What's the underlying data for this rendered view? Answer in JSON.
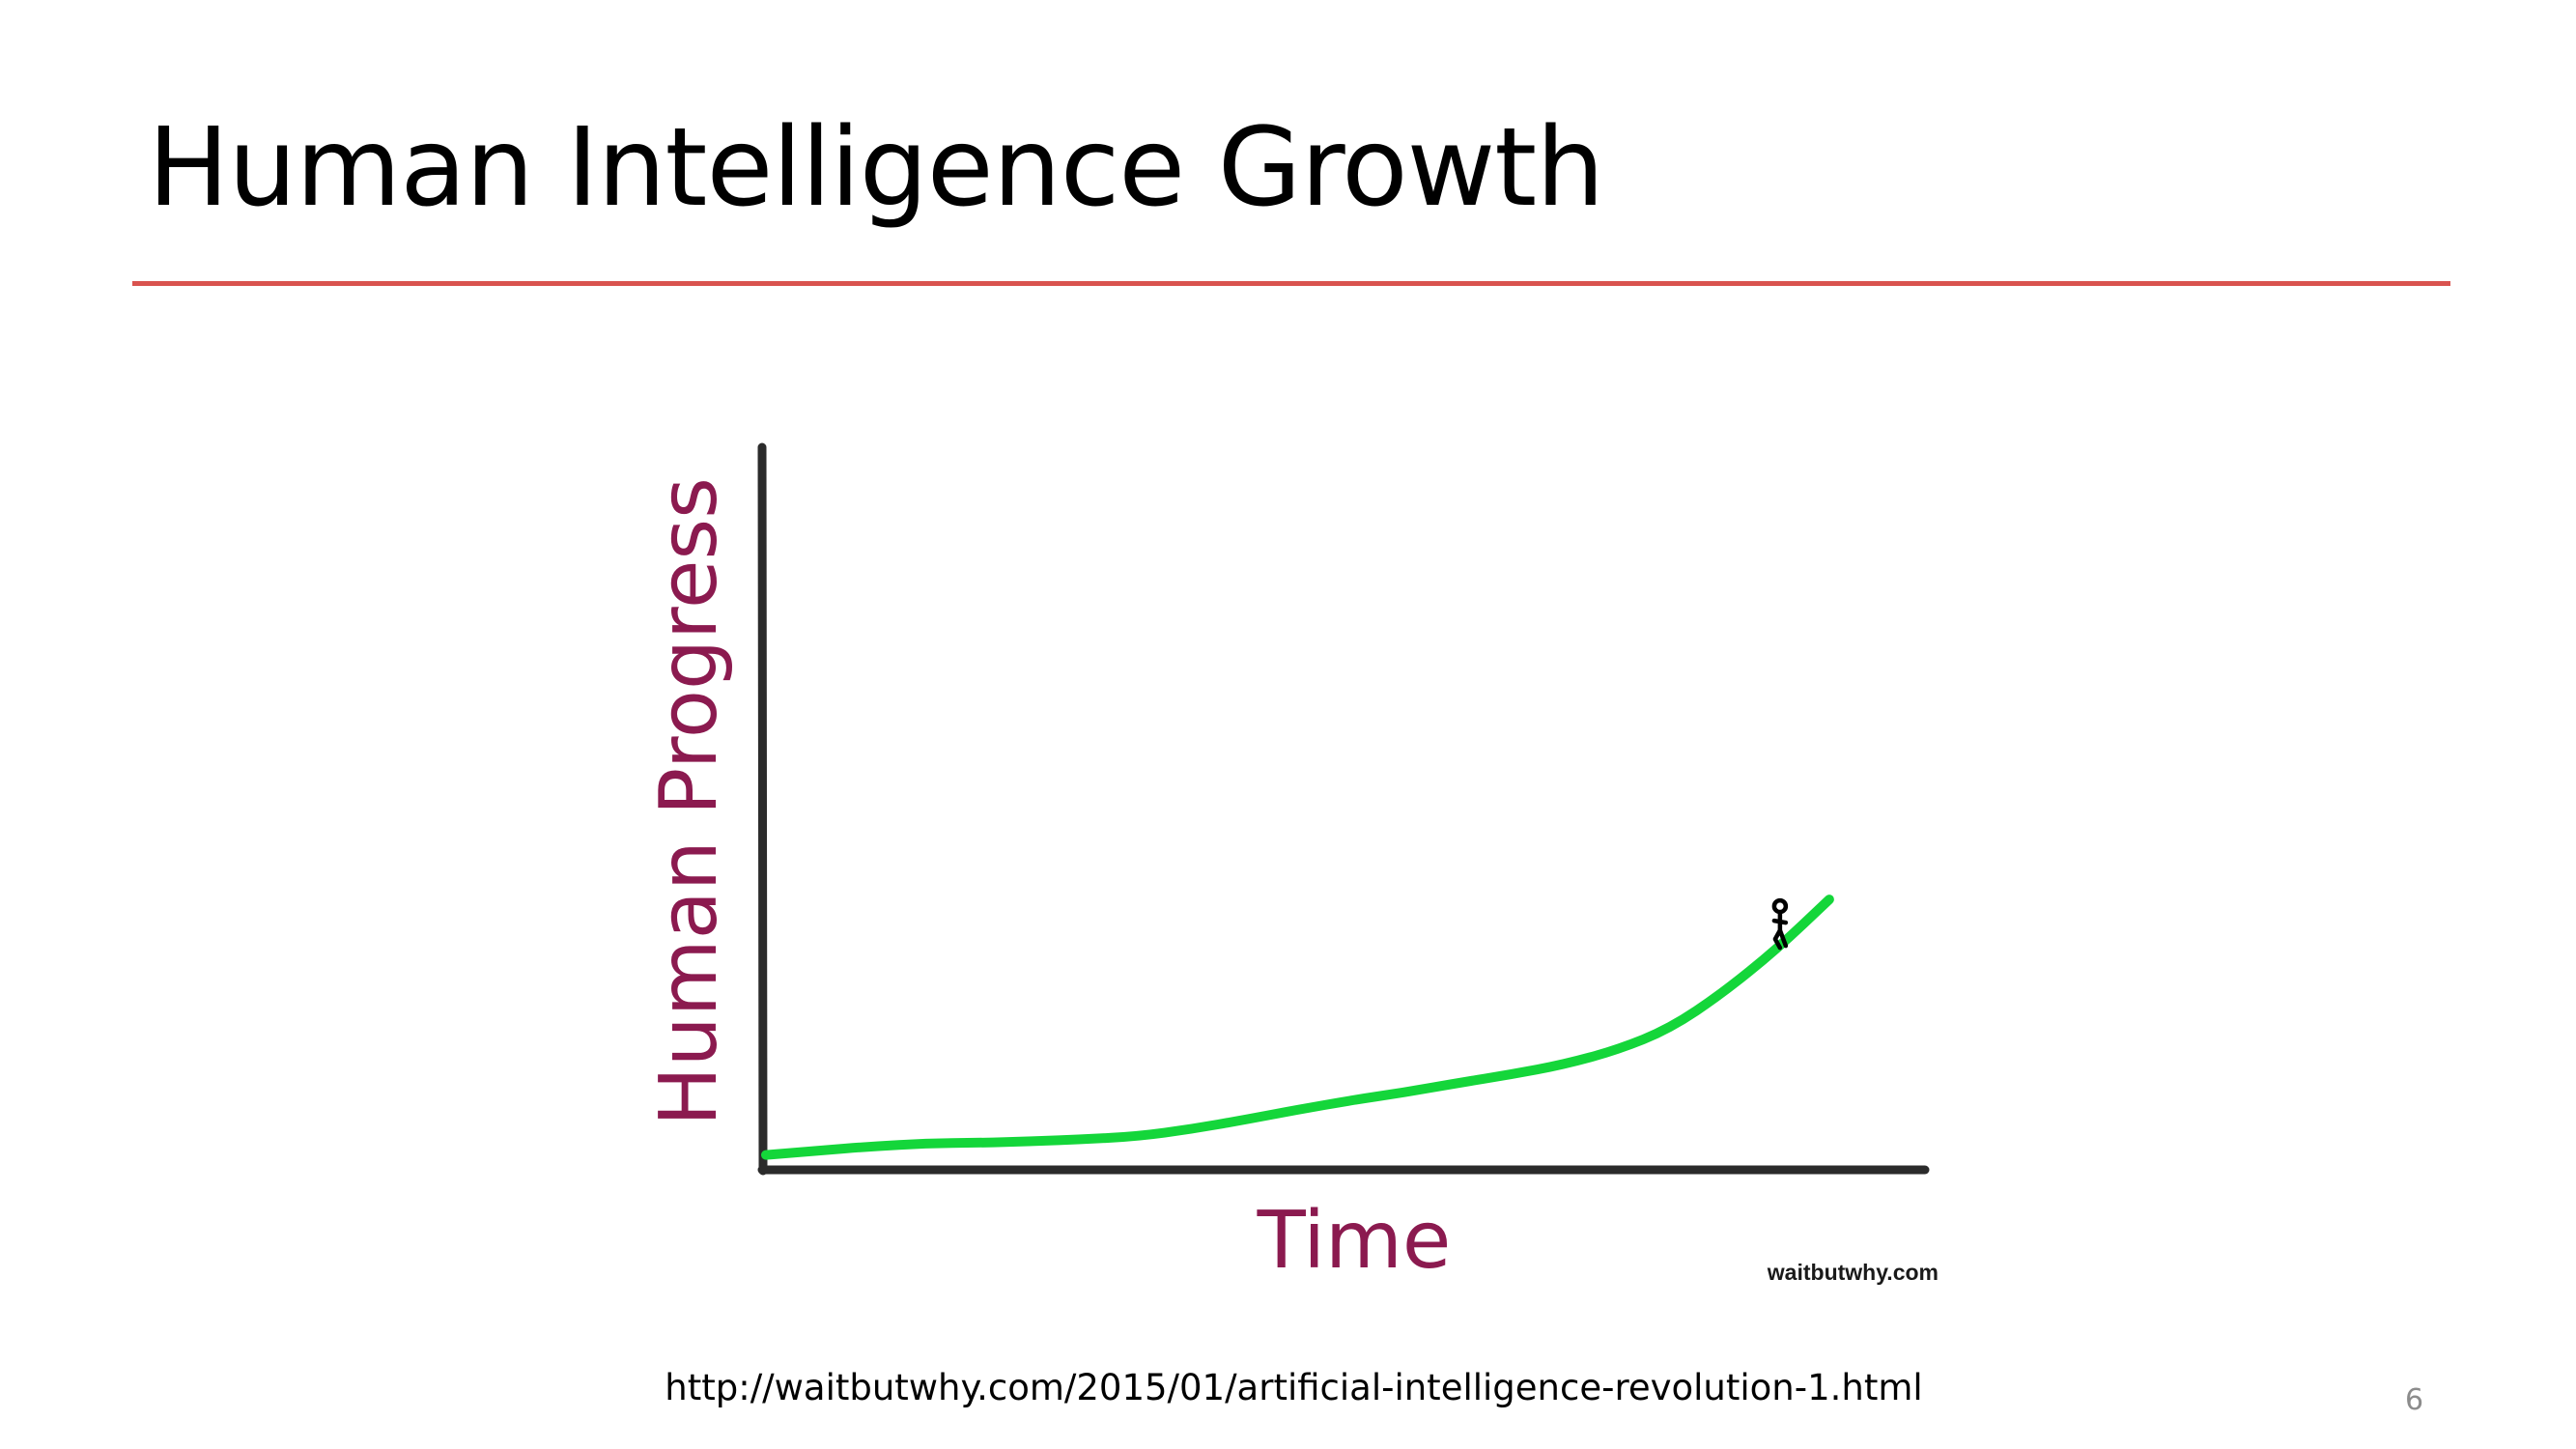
{
  "slide": {
    "title": "Human Intelligence Growth",
    "source_url": "http://waitbutwhy.com/2015/01/artificial-intelligence-revolution-1.html",
    "page_number": "6"
  },
  "chart_data": {
    "type": "line",
    "xlabel": "Time",
    "ylabel": "Human Progress",
    "watermark": "waitbutwhy.com",
    "series": [
      {
        "color": "#14d63a",
        "x": [
          0,
          5,
          10,
          15,
          20,
          25,
          30,
          35,
          40,
          45,
          50,
          55,
          60,
          65,
          70,
          75,
          80,
          85,
          90,
          95,
          100
        ],
        "values": [
          1.4,
          2.0,
          2.6,
          3.0,
          3.1,
          3.3,
          3.6,
          4.0,
          5.0,
          6.3,
          7.7,
          9.0,
          10.1,
          11.4,
          12.6,
          14.0,
          16.0,
          19.0,
          24.0,
          30.0,
          37.0
        ]
      }
    ],
    "xlim": [
      0,
      109
    ],
    "ylim": [
      0,
      100
    ],
    "colors": {
      "axes": "#2b2b2b",
      "labels": "#8b1a4f",
      "line": "#14d63a"
    },
    "annotation": "stick-figure-at-line-end"
  }
}
